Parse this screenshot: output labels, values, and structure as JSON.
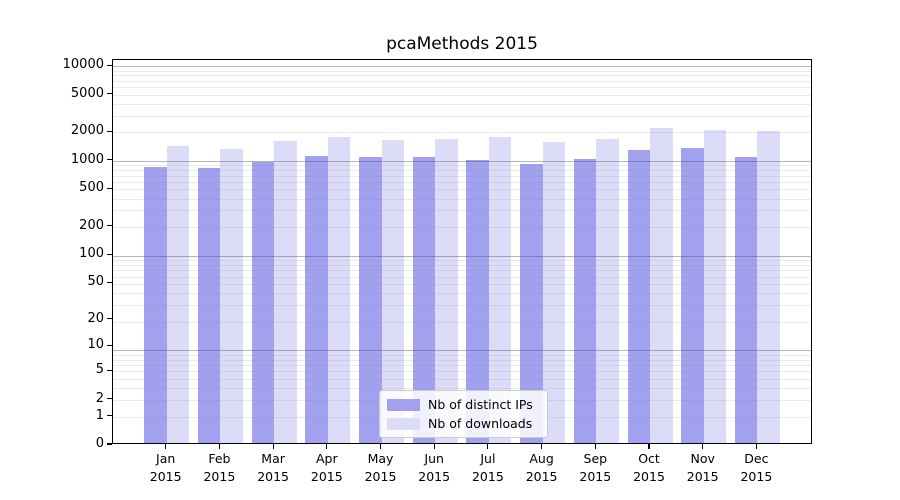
{
  "chart_data": {
    "type": "bar",
    "title": "pcaMethods 2015",
    "categories": [
      "Jan 2015",
      "Feb 2015",
      "Mar 2015",
      "Apr 2015",
      "May 2015",
      "Jun 2015",
      "Jul 2015",
      "Aug 2015",
      "Sep 2015",
      "Oct 2015",
      "Nov 2015",
      "Dec 2015"
    ],
    "series": [
      {
        "name": "Nb of distinct IPs",
        "color": "#a1a1f0",
        "values": [
          830,
          810,
          930,
          1070,
          1050,
          1050,
          970,
          890,
          990,
          1230,
          1290,
          1060
        ]
      },
      {
        "name": "Nb of downloads",
        "color": "#dcdcf8",
        "values": [
          1370,
          1260,
          1560,
          1720,
          1600,
          1640,
          1700,
          1510,
          1630,
          2100,
          2030,
          1950
        ]
      }
    ],
    "xlabel": "",
    "ylabel": "",
    "yscale": "log10(1+y)",
    "y_tick_values": [
      0,
      1,
      2,
      5,
      10,
      20,
      50,
      100,
      200,
      500,
      1000,
      2000,
      5000,
      10000
    ],
    "ylim": [
      0,
      11600
    ],
    "grid": "horizontal, log major + minor lines",
    "legend_position": "lower center inside plot",
    "bar_color_ips": "#a1a1f0",
    "bar_color_downloads": "#dcdcf8",
    "grid_major_color": "#b4b4b4",
    "grid_minor_color": "#eaeaea"
  }
}
